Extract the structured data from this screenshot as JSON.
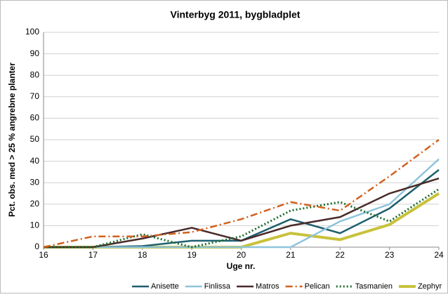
{
  "chart_data": {
    "type": "line",
    "title": "Vinterbyg 2011, bygbladplet",
    "xlabel": "Uge nr.",
    "ylabel": "Pct. obs. med > 25 % angrebne planter",
    "x": [
      16,
      17,
      18,
      19,
      20,
      21,
      22,
      23,
      24
    ],
    "xlim": [
      16,
      24
    ],
    "xticks": [
      16,
      17,
      18,
      19,
      20,
      21,
      22,
      23,
      24
    ],
    "ylim": [
      0,
      100
    ],
    "yticks": [
      0,
      10,
      20,
      30,
      40,
      50,
      60,
      70,
      80,
      90,
      100
    ],
    "grid": true,
    "legend": "bottom",
    "series": [
      {
        "name": "Anisette",
        "color": "#1f5f6e",
        "style": "solid",
        "values": [
          0,
          0,
          0.5,
          3,
          3,
          13,
          6.5,
          18,
          36
        ]
      },
      {
        "name": "Finlissa",
        "color": "#8fc4dc",
        "style": "solid",
        "values": [
          0,
          0,
          0,
          0,
          0,
          0,
          12,
          20,
          41
        ]
      },
      {
        "name": "Matros",
        "color": "#4a2a2a",
        "style": "solid",
        "values": [
          0,
          0,
          4,
          9,
          3,
          10,
          14,
          25,
          32
        ]
      },
      {
        "name": "Pelican",
        "color": "#d2611e",
        "style": "dashdot",
        "values": [
          0,
          5,
          5,
          7,
          13,
          21,
          17,
          33,
          50
        ]
      },
      {
        "name": "Tasmanien",
        "color": "#1e6e2e",
        "style": "dotted",
        "values": [
          0,
          0,
          6,
          0,
          5,
          17,
          21,
          12,
          27
        ]
      },
      {
        "name": "Zephyr",
        "color": "#c8c23c",
        "style": "thick",
        "values": [
          0,
          0,
          0,
          0,
          0,
          6.5,
          3.5,
          10.5,
          25
        ]
      }
    ]
  }
}
